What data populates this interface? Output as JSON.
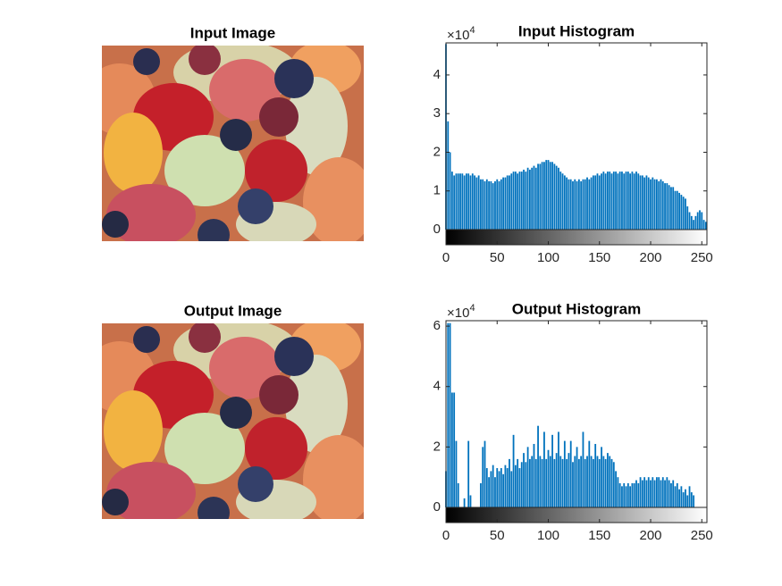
{
  "chart_data": [
    {
      "type": "image",
      "title": "Input Image"
    },
    {
      "type": "histogram",
      "title": "Input Histogram",
      "y_scale_label": {
        "text": "×10",
        "exponent": 4
      },
      "xlim": [
        0,
        255
      ],
      "xticks": [
        0,
        50,
        100,
        150,
        200,
        250
      ],
      "ylim": [
        0,
        4.83
      ],
      "yticks": [
        0,
        1,
        2,
        3,
        4
      ],
      "x": [
        0,
        2,
        4,
        6,
        8,
        10,
        12,
        14,
        16,
        18,
        20,
        22,
        24,
        26,
        28,
        30,
        32,
        34,
        36,
        38,
        40,
        42,
        44,
        46,
        48,
        50,
        52,
        54,
        56,
        58,
        60,
        62,
        64,
        66,
        68,
        70,
        72,
        74,
        76,
        78,
        80,
        82,
        84,
        86,
        88,
        90,
        92,
        94,
        96,
        98,
        100,
        102,
        104,
        106,
        108,
        110,
        112,
        114,
        116,
        118,
        120,
        122,
        124,
        126,
        128,
        130,
        132,
        134,
        136,
        138,
        140,
        142,
        144,
        146,
        148,
        150,
        152,
        154,
        156,
        158,
        160,
        162,
        164,
        166,
        168,
        170,
        172,
        174,
        176,
        178,
        180,
        182,
        184,
        186,
        188,
        190,
        192,
        194,
        196,
        198,
        200,
        202,
        204,
        206,
        208,
        210,
        212,
        214,
        216,
        218,
        220,
        222,
        224,
        226,
        228,
        230,
        232,
        234,
        236,
        238,
        240,
        242,
        244,
        246,
        248,
        250,
        252,
        254
      ],
      "series": [
        {
          "color": "#0072bd",
          "values": [
            4.8,
            2.8,
            2.0,
            1.5,
            1.4,
            1.45,
            1.45,
            1.45,
            1.45,
            1.4,
            1.45,
            1.45,
            1.4,
            1.45,
            1.4,
            1.35,
            1.4,
            1.3,
            1.3,
            1.25,
            1.3,
            1.25,
            1.25,
            1.2,
            1.25,
            1.3,
            1.25,
            1.3,
            1.35,
            1.35,
            1.4,
            1.4,
            1.45,
            1.5,
            1.5,
            1.45,
            1.5,
            1.5,
            1.55,
            1.5,
            1.6,
            1.55,
            1.6,
            1.65,
            1.6,
            1.7,
            1.7,
            1.75,
            1.75,
            1.8,
            1.8,
            1.75,
            1.75,
            1.7,
            1.65,
            1.6,
            1.5,
            1.45,
            1.4,
            1.35,
            1.3,
            1.3,
            1.25,
            1.3,
            1.25,
            1.3,
            1.25,
            1.3,
            1.3,
            1.35,
            1.3,
            1.35,
            1.4,
            1.4,
            1.45,
            1.4,
            1.45,
            1.5,
            1.45,
            1.5,
            1.5,
            1.45,
            1.5,
            1.5,
            1.45,
            1.5,
            1.5,
            1.45,
            1.5,
            1.5,
            1.45,
            1.5,
            1.45,
            1.5,
            1.45,
            1.4,
            1.4,
            1.35,
            1.4,
            1.35,
            1.3,
            1.35,
            1.3,
            1.3,
            1.25,
            1.3,
            1.25,
            1.2,
            1.2,
            1.15,
            1.1,
            1.1,
            1.0,
            1.0,
            0.95,
            0.9,
            0.85,
            0.8,
            0.6,
            0.45,
            0.35,
            0.25,
            0.35,
            0.45,
            0.5,
            0.45,
            0.25,
            0.2
          ]
        }
      ]
    },
    {
      "type": "image",
      "title": "Output Image"
    },
    {
      "type": "histogram",
      "title": "Output Histogram",
      "y_scale_label": {
        "text": "×10",
        "exponent": 4
      },
      "xlim": [
        0,
        255
      ],
      "xticks": [
        0,
        50,
        100,
        150,
        200,
        250
      ],
      "ylim": [
        0,
        6.18
      ],
      "yticks": [
        0,
        2,
        4,
        6
      ],
      "x": [
        0,
        2,
        4,
        6,
        8,
        10,
        12,
        14,
        16,
        18,
        20,
        22,
        24,
        26,
        28,
        30,
        32,
        34,
        36,
        38,
        40,
        42,
        44,
        46,
        48,
        50,
        52,
        54,
        56,
        58,
        60,
        62,
        64,
        66,
        68,
        70,
        72,
        74,
        76,
        78,
        80,
        82,
        84,
        86,
        88,
        90,
        92,
        94,
        96,
        98,
        100,
        102,
        104,
        106,
        108,
        110,
        112,
        114,
        116,
        118,
        120,
        122,
        124,
        126,
        128,
        130,
        132,
        134,
        136,
        138,
        140,
        142,
        144,
        146,
        148,
        150,
        152,
        154,
        156,
        158,
        160,
        162,
        164,
        166,
        168,
        170,
        172,
        174,
        176,
        178,
        180,
        182,
        184,
        186,
        188,
        190,
        192,
        194,
        196,
        198,
        200,
        202,
        204,
        206,
        208,
        210,
        212,
        214,
        216,
        218,
        220,
        222,
        224,
        226,
        228,
        230,
        232,
        234,
        236,
        238,
        240,
        242,
        244,
        246,
        248,
        250,
        252,
        254
      ],
      "series": [
        {
          "color": "#0072bd",
          "values": [
            1.2,
            6.1,
            6.1,
            3.8,
            3.8,
            2.2,
            0.8,
            0,
            0,
            0.3,
            0,
            2.2,
            0.4,
            0,
            0,
            0,
            0,
            0.8,
            2.0,
            2.2,
            1.3,
            1.0,
            1.2,
            1.4,
            1.0,
            1.3,
            1.2,
            1.3,
            1.1,
            1.4,
            1.3,
            1.6,
            1.2,
            2.4,
            1.4,
            1.6,
            1.3,
            1.5,
            1.8,
            1.5,
            2.0,
            1.6,
            1.7,
            2.1,
            1.6,
            2.7,
            1.7,
            1.6,
            2.5,
            1.6,
            1.9,
            1.7,
            2.4,
            1.6,
            1.8,
            2.5,
            1.7,
            1.6,
            2.2,
            1.6,
            1.8,
            2.2,
            1.5,
            1.7,
            2.0,
            1.6,
            1.7,
            2.5,
            1.6,
            1.7,
            2.2,
            1.7,
            1.6,
            2.1,
            1.7,
            1.6,
            2.0,
            1.7,
            1.6,
            1.8,
            1.7,
            1.6,
            1.5,
            1.2,
            1.0,
            0.8,
            0.7,
            0.8,
            0.7,
            0.8,
            0.7,
            0.8,
            0.8,
            0.9,
            0.8,
            1.0,
            0.9,
            1.0,
            0.9,
            1.0,
            0.9,
            1.0,
            0.9,
            1.0,
            1.0,
            0.9,
            1.0,
            0.9,
            1.0,
            0.9,
            0.8,
            0.9,
            0.7,
            0.8,
            0.6,
            0.7,
            0.5,
            0.6,
            0.4,
            0.7,
            0.5,
            0.4,
            0,
            0,
            0,
            0,
            0,
            0
          ]
        }
      ]
    }
  ]
}
